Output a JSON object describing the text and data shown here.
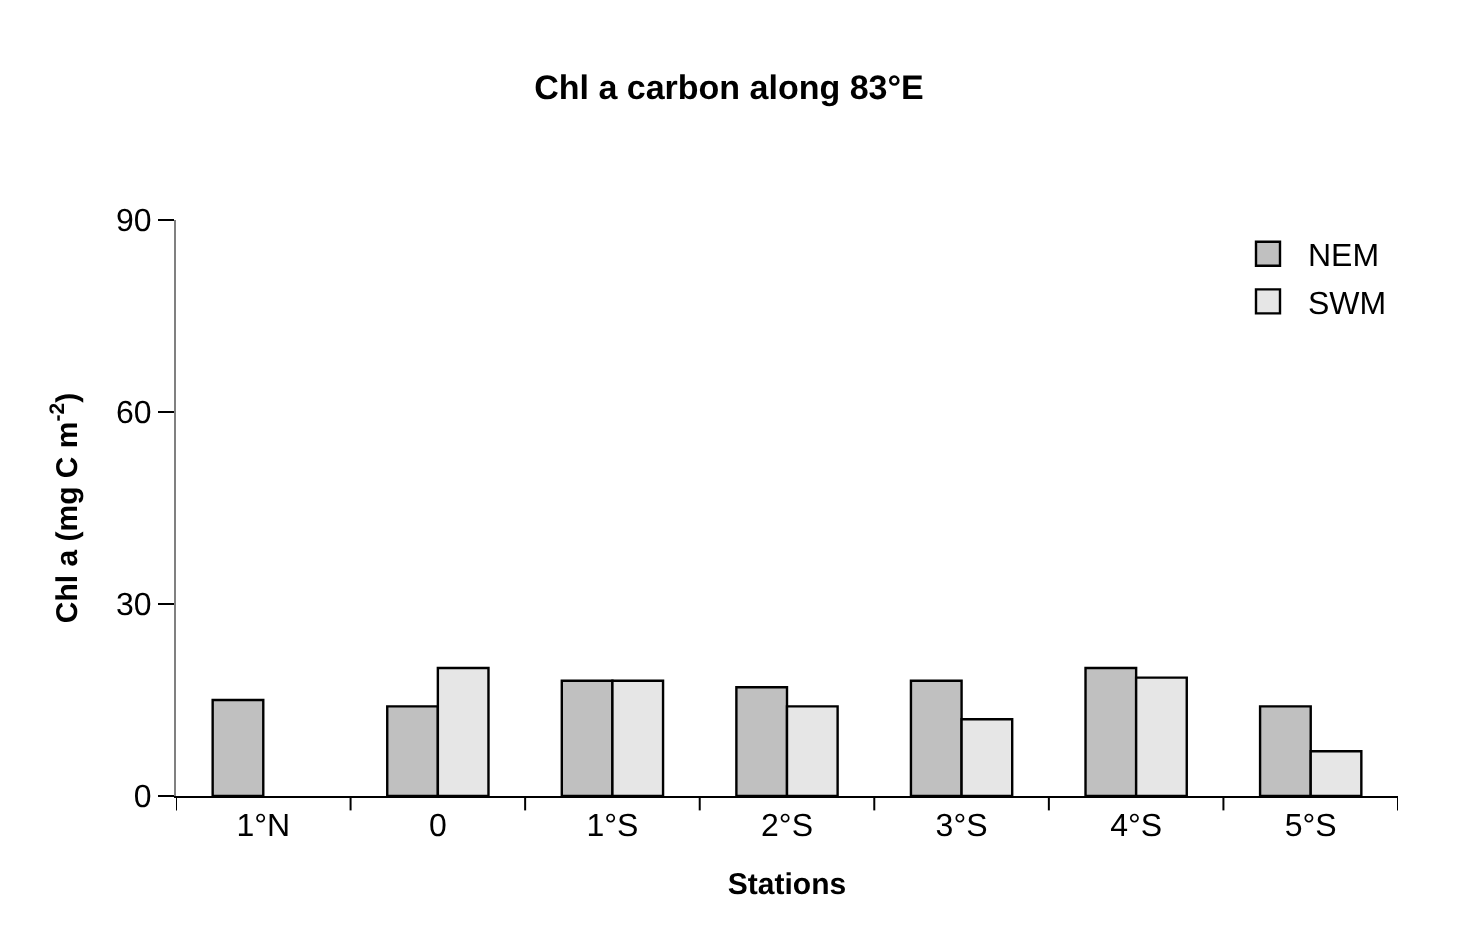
{
  "chart_data": {
    "type": "bar",
    "title": "Chl a carbon along 83°E",
    "xlabel": "Stations",
    "ylabel": "Chl a (mg C m$^{-2}$)",
    "categories": [
      "1°N",
      "0",
      "1°S",
      "2°S",
      "3°S",
      "4°S",
      "5°S"
    ],
    "series": [
      {
        "name": "NEM",
        "color": "#c0c0c0",
        "values": [
          15,
          14,
          18,
          17,
          18,
          20,
          14
        ]
      },
      {
        "name": "SWM",
        "color": "#e6e6e6",
        "values": [
          null,
          20,
          18,
          14,
          12,
          18.5,
          7
        ]
      }
    ],
    "ylim": [
      0,
      90
    ],
    "yticks": [
      0,
      30,
      60,
      90
    ],
    "legend": "top right"
  }
}
